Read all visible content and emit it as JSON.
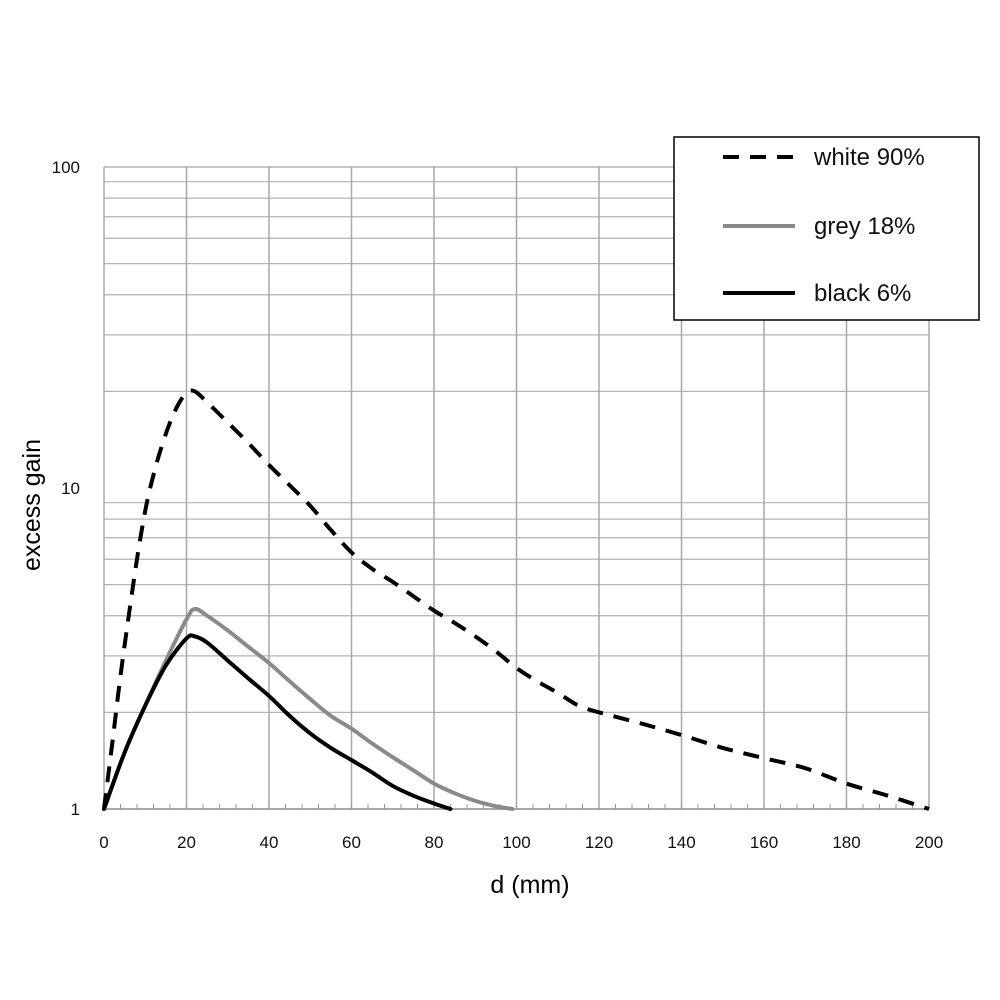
{
  "chart_data": {
    "type": "line",
    "xlabel": "d (mm)",
    "ylabel": "excess gain",
    "xlim": [
      0,
      200
    ],
    "ylim": [
      1,
      100
    ],
    "yscale": "log",
    "x_ticks": [
      "0",
      "20",
      "40",
      "60",
      "80",
      "100",
      "120",
      "140",
      "160",
      "180",
      "200"
    ],
    "y_ticks": [
      "1",
      "10",
      "100"
    ],
    "grid": true,
    "legend_position": "top-right",
    "series": [
      {
        "name": "white 90%",
        "style": "dashed",
        "color": "#000000",
        "points": [
          [
            0,
            1.0
          ],
          [
            2,
            1.6
          ],
          [
            4,
            2.6
          ],
          [
            6,
            4.0
          ],
          [
            8,
            6.0
          ],
          [
            10,
            8.5
          ],
          [
            12,
            11.0
          ],
          [
            14,
            13.5
          ],
          [
            16,
            16.0
          ],
          [
            18,
            18.2
          ],
          [
            20,
            19.8
          ],
          [
            22,
            20.0
          ],
          [
            25,
            18.5
          ],
          [
            30,
            16.0
          ],
          [
            35,
            13.8
          ],
          [
            40,
            11.8
          ],
          [
            45,
            10.2
          ],
          [
            50,
            8.8
          ],
          [
            55,
            7.4
          ],
          [
            60,
            6.3
          ],
          [
            65,
            5.6
          ],
          [
            70,
            5.1
          ],
          [
            75,
            4.6
          ],
          [
            80,
            4.15
          ],
          [
            85,
            3.8
          ],
          [
            90,
            3.45
          ],
          [
            95,
            3.1
          ],
          [
            100,
            2.75
          ],
          [
            105,
            2.5
          ],
          [
            110,
            2.3
          ],
          [
            115,
            2.1
          ],
          [
            120,
            2.0
          ],
          [
            130,
            1.85
          ],
          [
            140,
            1.7
          ],
          [
            150,
            1.55
          ],
          [
            160,
            1.44
          ],
          [
            170,
            1.34
          ],
          [
            180,
            1.2
          ],
          [
            190,
            1.1
          ],
          [
            200,
            1.0
          ]
        ]
      },
      {
        "name": "grey 18%",
        "style": "solid",
        "color": "#8a8a8a",
        "points": [
          [
            0,
            1.0
          ],
          [
            5,
            1.5
          ],
          [
            10,
            2.1
          ],
          [
            15,
            2.9
          ],
          [
            20,
            3.9
          ],
          [
            22,
            4.2
          ],
          [
            25,
            4.0
          ],
          [
            30,
            3.6
          ],
          [
            35,
            3.2
          ],
          [
            40,
            2.85
          ],
          [
            45,
            2.5
          ],
          [
            50,
            2.2
          ],
          [
            55,
            1.95
          ],
          [
            60,
            1.78
          ],
          [
            65,
            1.6
          ],
          [
            70,
            1.45
          ],
          [
            75,
            1.32
          ],
          [
            80,
            1.2
          ],
          [
            85,
            1.12
          ],
          [
            90,
            1.06
          ],
          [
            95,
            1.02
          ],
          [
            99,
            1.0
          ]
        ]
      },
      {
        "name": "black 6%",
        "style": "solid",
        "color": "#000000",
        "points": [
          [
            0,
            1.0
          ],
          [
            5,
            1.5
          ],
          [
            10,
            2.1
          ],
          [
            15,
            2.8
          ],
          [
            20,
            3.4
          ],
          [
            22,
            3.45
          ],
          [
            25,
            3.3
          ],
          [
            30,
            2.9
          ],
          [
            35,
            2.55
          ],
          [
            40,
            2.25
          ],
          [
            45,
            1.95
          ],
          [
            50,
            1.72
          ],
          [
            55,
            1.55
          ],
          [
            60,
            1.42
          ],
          [
            65,
            1.3
          ],
          [
            70,
            1.18
          ],
          [
            75,
            1.1
          ],
          [
            80,
            1.04
          ],
          [
            84,
            1.0
          ]
        ]
      }
    ]
  }
}
